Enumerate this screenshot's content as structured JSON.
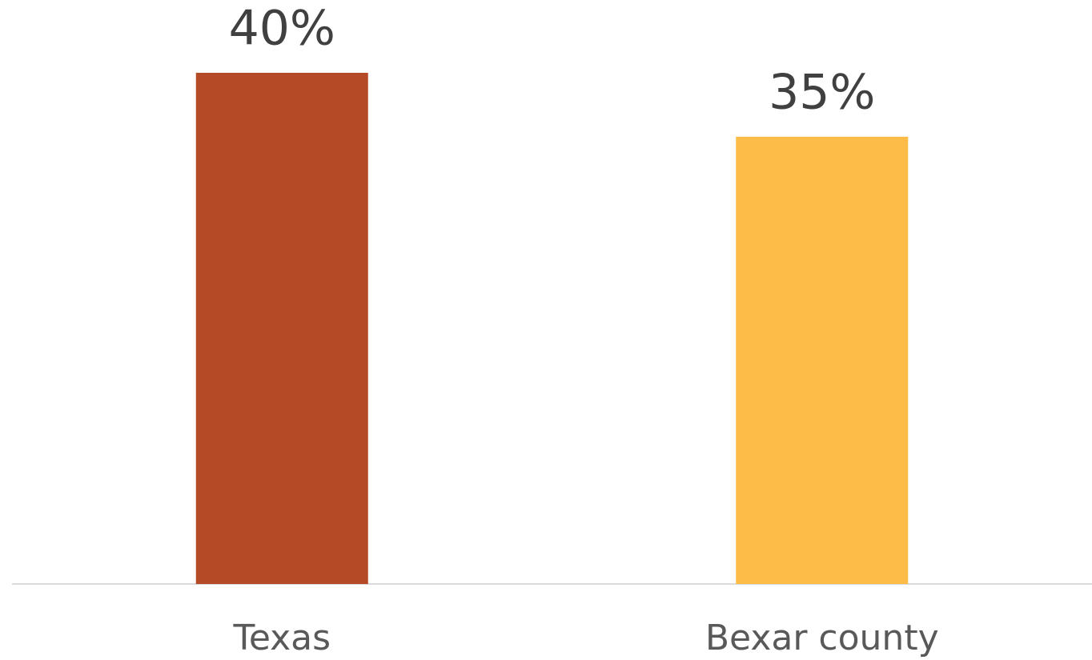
{
  "chart_data": {
    "type": "bar",
    "categories": [
      "Texas",
      "Bexar county"
    ],
    "values": [
      40,
      35
    ],
    "value_labels": [
      "40%",
      "35%"
    ],
    "colors": [
      "#b54a26",
      "#fdbb48"
    ]
  }
}
